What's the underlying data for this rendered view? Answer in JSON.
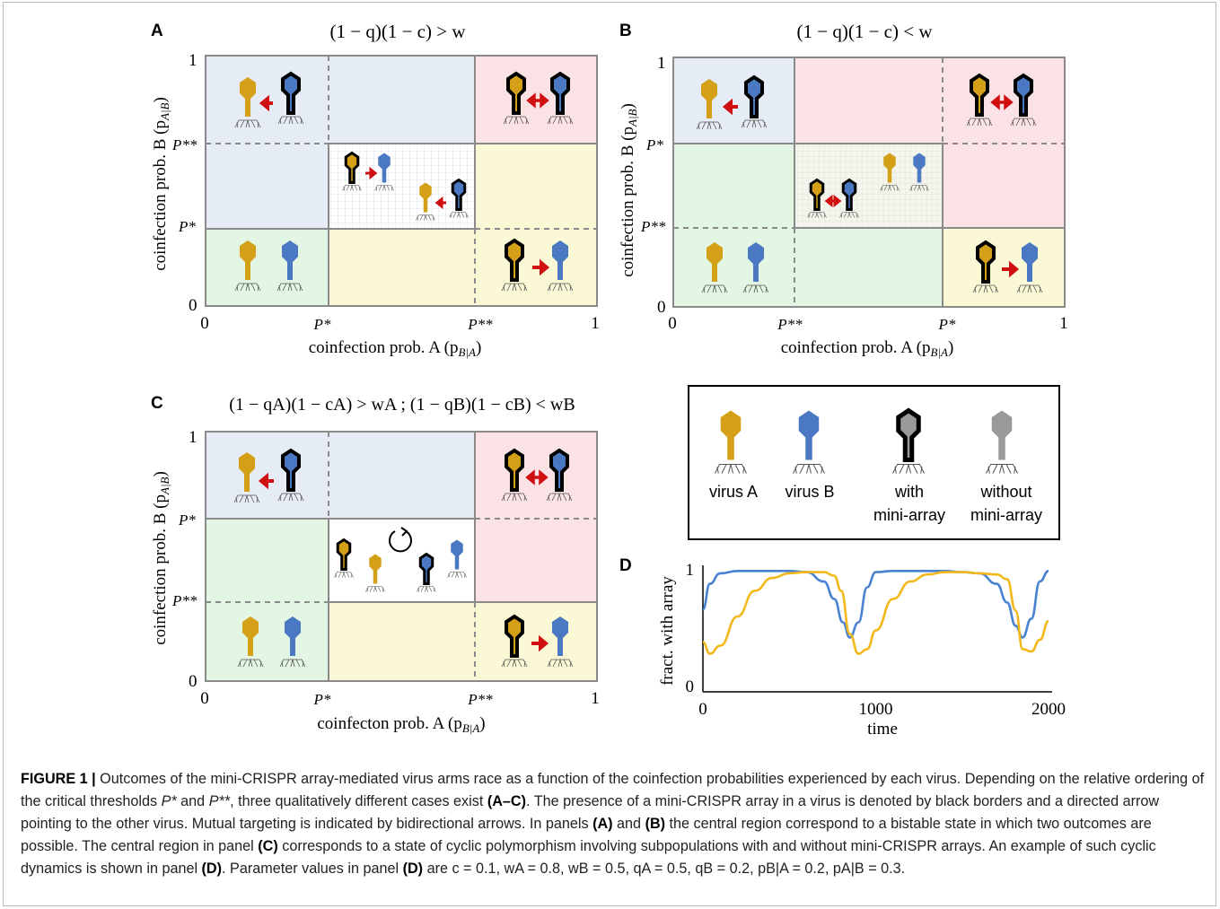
{
  "panels": {
    "a": {
      "letter": "A",
      "condition": "(1 − q)(1 − c) > w",
      "x_axis_label": "coinfection prob. A (p",
      "x_axis_sub": "B|A",
      "y_axis_label": "coinfection prob. B (p",
      "y_axis_sub": "A|B",
      "x_tick_first": "P*",
      "x_tick_second": "P**",
      "y_tick_first": "P**",
      "y_tick_second": "P*",
      "axis_zero": "0",
      "axis_one": "1"
    },
    "b": {
      "letter": "B",
      "condition": "(1 − q)(1 − c) < w",
      "x_axis_label": "coinfection prob. A (p",
      "x_axis_sub": "B|A",
      "y_axis_label": "coinfection prob. B (p",
      "y_axis_sub": "A|B",
      "x_tick_first": "P**",
      "x_tick_second": "P*",
      "y_tick_first": "P*",
      "y_tick_second": "P**",
      "axis_zero": "0",
      "axis_one": "1"
    },
    "c": {
      "letter": "C",
      "condition": "(1 − qA)(1 − cA) > wA  ;  (1 − qB)(1 − cB) < wB",
      "x_axis_label": "coinfecton prob. A (p",
      "x_axis_sub": "B|A",
      "y_axis_label": "coinfection prob. B (p",
      "y_axis_sub": "A|B",
      "x_tick_first": "P*",
      "x_tick_second": "P**",
      "y_tick_first": "P*",
      "y_tick_second": "P**",
      "axis_zero": "0",
      "axis_one": "1"
    },
    "d": {
      "letter": "D",
      "x_axis_label": "time",
      "y_axis_label": "fract. with array"
    }
  },
  "legend": {
    "virus_a": "virus A",
    "virus_b": "virus B",
    "with_line1": "with",
    "with_line2": "mini-array",
    "without_line1": "without",
    "without_line2": "mini-array"
  },
  "colors": {
    "virus_a": "#d4a017",
    "virus_b": "#4a78c2",
    "blue_region": "#e6ecf5",
    "red_region": "#fbe3e5",
    "yellow_region": "#fbf8d5",
    "green_region": "#e3f5e3",
    "arrow": "#d01010",
    "line_a": "#f2b81b",
    "line_b": "#4a82d2"
  },
  "chart_data": {
    "type": "line",
    "title": "",
    "xlabel": "time",
    "ylabel": "fract. with array",
    "xlim": [
      0,
      2000
    ],
    "ylim": [
      0,
      1
    ],
    "x_ticks": [
      "0",
      "1000",
      "2000"
    ],
    "y_ticks": [
      "0",
      "1"
    ],
    "grid": false,
    "legend": "none",
    "series": [
      {
        "color": "#4a82d2",
        "x": [
          0,
          40,
          100,
          200,
          300,
          400,
          500,
          600,
          700,
          760,
          810,
          850,
          900,
          950,
          1000,
          1100,
          1200,
          1300,
          1400,
          1500,
          1600,
          1700,
          1760,
          1810,
          1850,
          1900,
          1950,
          2000
        ],
        "values": [
          0.66,
          0.88,
          0.97,
          0.99,
          0.99,
          0.99,
          0.99,
          0.98,
          0.9,
          0.75,
          0.55,
          0.42,
          0.55,
          0.85,
          0.98,
          0.99,
          0.99,
          0.99,
          0.99,
          0.98,
          0.97,
          0.88,
          0.72,
          0.52,
          0.42,
          0.58,
          0.9,
          0.99
        ]
      },
      {
        "color": "#f2b81b",
        "x": [
          0,
          40,
          100,
          200,
          300,
          400,
          500,
          600,
          700,
          760,
          800,
          850,
          900,
          950,
          1000,
          1100,
          1200,
          1300,
          1400,
          1500,
          1600,
          1700,
          1760,
          1810,
          1850,
          1900,
          1950,
          2000
        ],
        "values": [
          0.38,
          0.28,
          0.35,
          0.6,
          0.82,
          0.93,
          0.97,
          0.98,
          0.98,
          0.95,
          0.82,
          0.45,
          0.28,
          0.32,
          0.48,
          0.75,
          0.9,
          0.96,
          0.98,
          0.98,
          0.97,
          0.96,
          0.92,
          0.65,
          0.32,
          0.3,
          0.4,
          0.56
        ]
      }
    ]
  },
  "caption": {
    "figure_label": "FIGURE 1 |",
    "text1": " Outcomes of the mini-CRISPR array-mediated virus arms race as a function of the coinfection probabilities experienced by each virus. Depending on the relative ordering of the critical thresholds ",
    "p_star": "P*",
    "and": " and ",
    "p_star2": "P**",
    "text2": ", three qualitatively different cases exist ",
    "ref_ac": "(A–C)",
    "text3": ". The presence of a mini-CRISPR array in a virus is denoted by black borders and a directed arrow pointing to the other virus. Mutual targeting is indicated by bidirectional arrows. In panels ",
    "ref_a": "(A)",
    "and2": " and ",
    "ref_b": "(B)",
    "text4": " the central region correspond to a bistable state in which two outcomes are possible. The central region in panel ",
    "ref_c": "(C)",
    "text5": " corresponds to a state of cyclic polymorphism involving subpopulations with and without mini-CRISPR arrays. An example of such cyclic dynamics is shown in panel ",
    "ref_d": "(D)",
    "text6": ". Parameter values in panel ",
    "ref_d2": "(D)",
    "text7": " are c = 0.1, wA = 0.8, wB = 0.5, qA = 0.5, qB = 0.2, pB|A = 0.2, pA|B = 0.3."
  }
}
